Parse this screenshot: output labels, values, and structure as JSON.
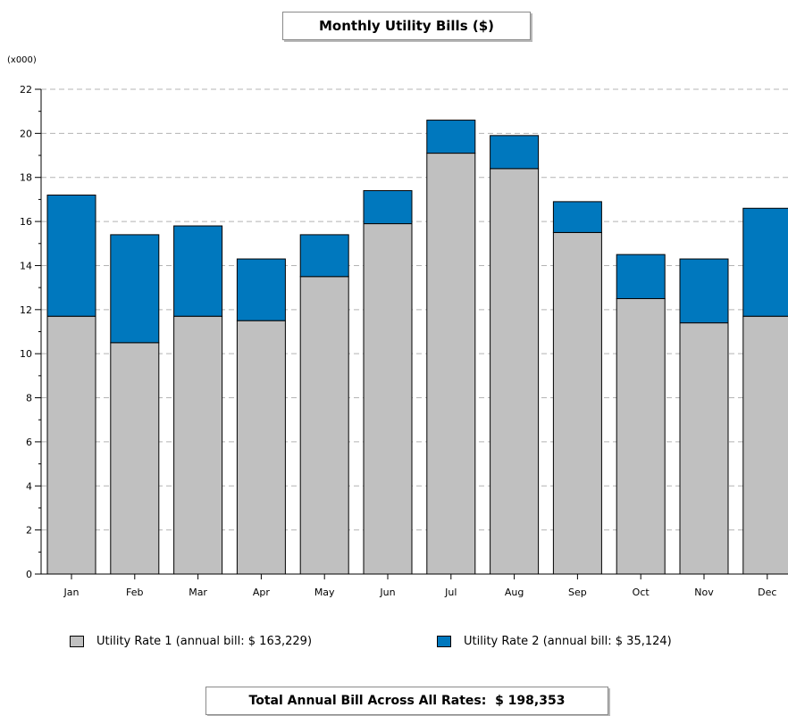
{
  "chart_data": {
    "type": "bar",
    "stacked": true,
    "title": "Monthly Utility Bills ($)",
    "y_multiplier_label": "(x000)",
    "categories": [
      "Jan",
      "Feb",
      "Mar",
      "Apr",
      "May",
      "Jun",
      "Jul",
      "Aug",
      "Sep",
      "Oct",
      "Nov",
      "Dec"
    ],
    "series": [
      {
        "name": "Utility Rate 1 (annual bill: $ 163,229)",
        "color": "#c0c0c0",
        "values": [
          11.7,
          10.5,
          11.7,
          11.5,
          13.5,
          15.9,
          19.1,
          18.4,
          15.5,
          12.5,
          11.4,
          11.7
        ]
      },
      {
        "name": "Utility Rate 2 (annual bill: $ 35,124)",
        "color": "#0078be",
        "values": [
          5.5,
          4.9,
          4.1,
          2.8,
          1.9,
          1.5,
          1.5,
          1.5,
          1.4,
          2.0,
          2.9,
          4.9
        ]
      }
    ],
    "ylim": [
      0,
      22
    ],
    "yticks": [
      0,
      2,
      4,
      6,
      8,
      10,
      12,
      14,
      16,
      18,
      20,
      22
    ],
    "grid": true,
    "legend_position": "bottom",
    "footer": "Total Annual Bill Across All Rates:  $ 198,353"
  }
}
